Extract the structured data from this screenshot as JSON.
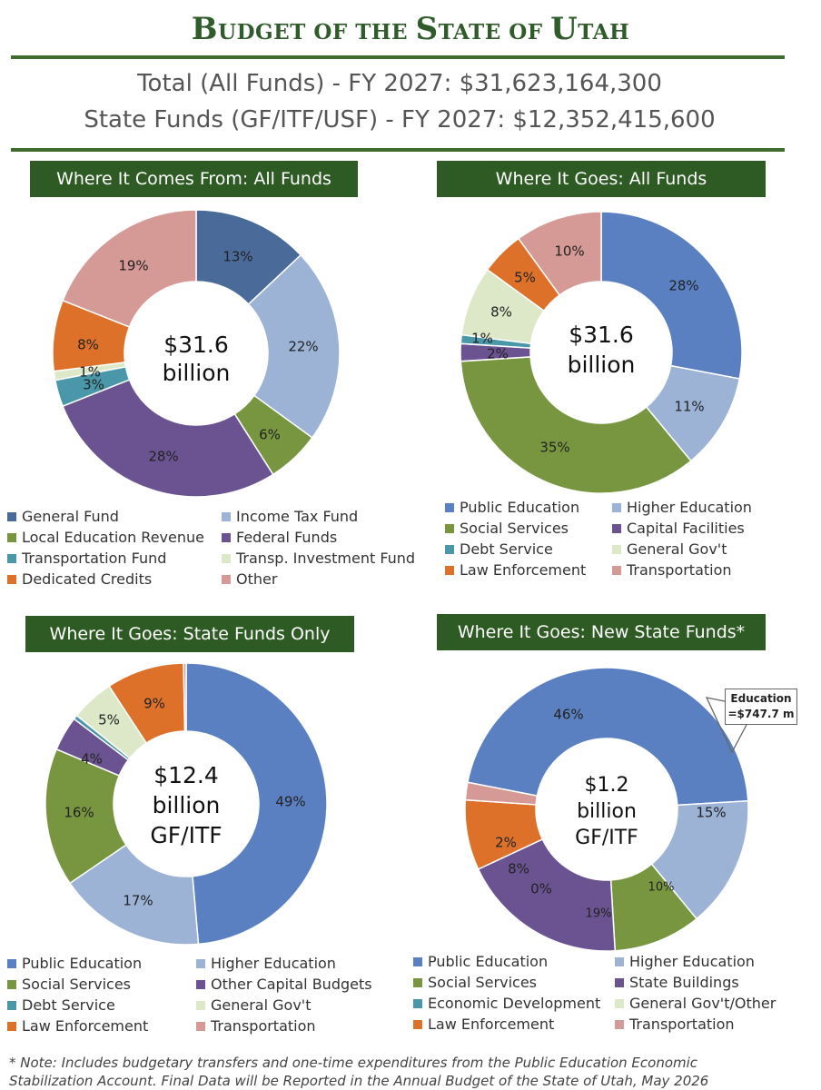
{
  "header": {
    "title_big_1": "B",
    "title_small_1": "UDGET",
    "title_small_2": " OF THE ",
    "title_big_2": "S",
    "title_small_3": "TATE",
    "title_small_4": " OF ",
    "title_big_3": "U",
    "title_small_5": "TAH",
    "total_all": "Total (All Funds) - FY 2027: $31,623,164,300",
    "total_state": "State Funds (GF/ITF/USF) - FY 2027: $12,352,415,600"
  },
  "footnote": {
    "line1": "* Note: Includes budgetary transfers and one-time expenditures from the Public Education Economic",
    "line2": "Stabilization Account. Final Data will be Reported in the Annual Budget of the State of Utah, May 2026"
  },
  "callout": {
    "line1": "Education",
    "line2": "=$747.7 m"
  },
  "chart_data": [
    {
      "type": "pie",
      "title": "Where It Comes From: All Funds",
      "center_text": [
        "$31.6",
        "billion"
      ],
      "categories": [
        "General Fund",
        "Income Tax Fund",
        "Local Education Revenue",
        "Federal Funds",
        "Transportation Fund",
        "Transp. Investment Fund",
        "Dedicated Credits",
        "Other"
      ],
      "order": [
        "General Fund",
        "Income Tax Fund",
        "Local Education Revenue",
        "Federal Funds",
        "Transportation Fund",
        "Transp. Investment Fund",
        "Dedicated Credits",
        "Other"
      ],
      "values": [
        13,
        22,
        6,
        28,
        3,
        1,
        8,
        19
      ],
      "labels": [
        "13%",
        "22%",
        "6%",
        "28%",
        "3%",
        "1%",
        "8%",
        "19%"
      ],
      "colors": [
        "#4a6b9a",
        "#9cb3d6",
        "#77963f",
        "#6a5390",
        "#4b97aa",
        "#dde8c8",
        "#dd7129",
        "#d59996"
      ],
      "legend": [
        "General Fund",
        "Income Tax Fund",
        "Local Education Revenue",
        "Federal Funds",
        "Transportation Fund",
        "Transp. Investment Fund",
        "Dedicated Credits",
        "Other"
      ]
    },
    {
      "type": "pie",
      "title": "Where It Goes: All Funds",
      "center_text": [
        "$31.6",
        "billion"
      ],
      "order": [
        "Public Education",
        "Higher Education",
        "Social Services",
        "Capital Facilities",
        "Debt Service",
        "General Gov't",
        "Law Enforcement",
        "Transportation"
      ],
      "values": [
        28,
        11,
        35,
        2,
        1,
        8,
        5,
        10
      ],
      "labels": [
        "28%",
        "11%",
        "35%",
        "2%",
        "1%",
        "8%",
        "5%",
        "10%"
      ],
      "colors": [
        "#5a80c2",
        "#9cb3d6",
        "#77963f",
        "#6a5390",
        "#4b97aa",
        "#dde8c8",
        "#dd7129",
        "#d59996"
      ],
      "legend": [
        "Public Education",
        "Higher Education",
        "Social Services",
        "Capital Facilities",
        "Debt Service",
        "General Gov't",
        "Law Enforcement",
        "Transportation"
      ]
    },
    {
      "type": "pie",
      "title": "Where It Goes: State Funds Only",
      "center_text": [
        "$12.4",
        "billion",
        "GF/ITF"
      ],
      "order": [
        "Public Education",
        "Higher Education",
        "Social Services",
        "Other Capital Budgets",
        "Debt Service",
        "General Gov't",
        "Law Enforcement",
        "Transportation"
      ],
      "values": [
        49,
        17,
        16,
        4,
        0.5,
        5,
        9,
        0.3
      ],
      "labels": [
        "49%",
        "17%",
        "16%",
        "4%",
        "",
        "5%",
        "9%",
        ""
      ],
      "colors": [
        "#5a80c2",
        "#9cb3d6",
        "#77963f",
        "#6a5390",
        "#4b97aa",
        "#dde8c8",
        "#dd7129",
        "#d59996"
      ],
      "legend": [
        "Public Education",
        "Higher Education",
        "Social Services",
        "Other Capital Budgets",
        "Debt Service",
        "General Gov't",
        "Law Enforcement",
        "Transportation"
      ]
    },
    {
      "type": "pie",
      "title": "Where It Goes: New State Funds*",
      "center_text": [
        "$1.2",
        "billion",
        "GF/ITF"
      ],
      "order": [
        "Public Education",
        "Higher Education",
        "Social Services",
        "State Buildings",
        "Economic Development",
        "General Gov't/Other",
        "Law Enforcement",
        "Transportation"
      ],
      "values": [
        46,
        15,
        10,
        19,
        0,
        0,
        8,
        2
      ],
      "labels": [
        "46%",
        "15%",
        "10%",
        "19%",
        "",
        "0%",
        "8%",
        "2%"
      ],
      "colors": [
        "#5a80c2",
        "#9cb3d6",
        "#77963f",
        "#6a5390",
        "#4b97aa",
        "#dde8c8",
        "#dd7129",
        "#d59996"
      ],
      "legend": [
        "Public Education",
        "Higher Education",
        "Social Services",
        "State Buildings",
        "Economic Development",
        "General Gov't/Other",
        "Law Enforcement",
        "Transportation"
      ]
    }
  ]
}
